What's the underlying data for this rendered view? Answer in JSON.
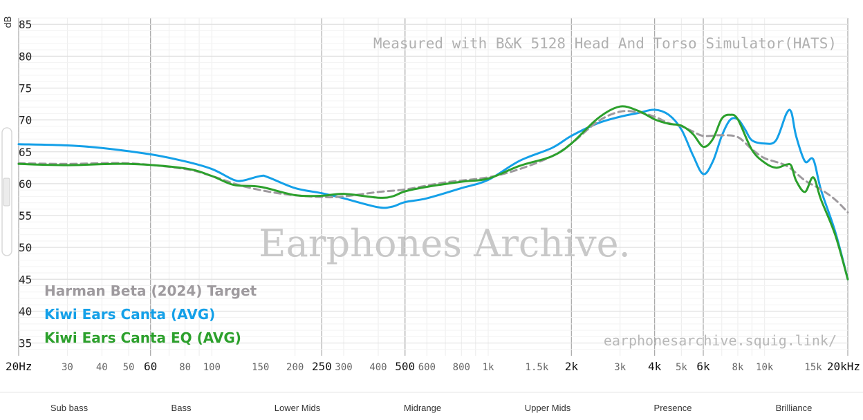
{
  "colors": {
    "target": "#9e9a9e",
    "canta": "#14a0e8",
    "canta_eq": "#2ca02c"
  },
  "chart_data": {
    "type": "line",
    "title": "",
    "xlabel": "",
    "ylabel": "dB",
    "xscale": "log",
    "xlim": [
      20,
      20000
    ],
    "ylim": [
      33,
      86
    ],
    "grid": true,
    "legend_position": "bottom-left",
    "annotation": "Measured with B&K 5128 Head And Torso Simulator(HATS)",
    "watermark": "Earphones Archive.",
    "source": "earphonesarchive.squig.link/",
    "yticks": [
      85,
      80,
      75,
      70,
      65,
      60,
      55,
      50,
      45,
      40,
      35
    ],
    "xticks": [
      {
        "v": 20,
        "label": "20Hz",
        "major": true
      },
      {
        "v": 30,
        "label": "30",
        "major": false
      },
      {
        "v": 40,
        "label": "40",
        "major": false
      },
      {
        "v": 50,
        "label": "50",
        "major": false
      },
      {
        "v": 60,
        "label": "60",
        "major": true
      },
      {
        "v": 80,
        "label": "80",
        "major": false
      },
      {
        "v": 100,
        "label": "100",
        "major": false
      },
      {
        "v": 150,
        "label": "150",
        "major": false
      },
      {
        "v": 200,
        "label": "200",
        "major": false
      },
      {
        "v": 250,
        "label": "250",
        "major": true
      },
      {
        "v": 300,
        "label": "300",
        "major": false
      },
      {
        "v": 400,
        "label": "400",
        "major": false
      },
      {
        "v": 500,
        "label": "500",
        "major": true
      },
      {
        "v": 600,
        "label": "600",
        "major": false
      },
      {
        "v": 800,
        "label": "800",
        "major": false
      },
      {
        "v": 1000,
        "label": "1k",
        "major": false
      },
      {
        "v": 1500,
        "label": "1.5k",
        "major": false
      },
      {
        "v": 2000,
        "label": "2k",
        "major": true
      },
      {
        "v": 3000,
        "label": "3k",
        "major": false
      },
      {
        "v": 4000,
        "label": "4k",
        "major": true
      },
      {
        "v": 5000,
        "label": "5k",
        "major": false
      },
      {
        "v": 6000,
        "label": "6k",
        "major": true
      },
      {
        "v": 8000,
        "label": "8k",
        "major": false
      },
      {
        "v": 10000,
        "label": "10k",
        "major": false
      },
      {
        "v": 15000,
        "label": "15k",
        "major": false
      },
      {
        "v": 20000,
        "label": "20kHz",
        "major": true
      }
    ],
    "bands": [
      {
        "label": "Sub bass",
        "from": 20,
        "to": 60
      },
      {
        "label": "Bass",
        "from": 60,
        "to": 250
      },
      {
        "label": "Lower Mids",
        "from": 250,
        "to": 500
      },
      {
        "label": "Midrange",
        "from": 500,
        "to": 2000
      },
      {
        "label": "Upper Mids",
        "from": 2000,
        "to": 4000
      },
      {
        "label": "Presence",
        "from": 4000,
        "to": 6000
      },
      {
        "label": "Brilliance",
        "from": 6000,
        "to": 20000
      }
    ],
    "series": [
      {
        "name": "Harman Beta (2024) Target",
        "color_key": "target",
        "dashed": true,
        "points": [
          [
            20,
            63.2
          ],
          [
            30,
            63.1
          ],
          [
            50,
            63.2
          ],
          [
            80,
            62.3
          ],
          [
            100,
            61.2
          ],
          [
            130,
            59.6
          ],
          [
            180,
            58.4
          ],
          [
            250,
            57.9
          ],
          [
            300,
            58.0
          ],
          [
            400,
            58.7
          ],
          [
            500,
            59.1
          ],
          [
            700,
            60.2
          ],
          [
            1000,
            61.0
          ],
          [
            1300,
            62.3
          ],
          [
            1700,
            64.3
          ],
          [
            2000,
            66.3
          ],
          [
            2500,
            69.8
          ],
          [
            3000,
            71.3
          ],
          [
            3500,
            71.2
          ],
          [
            4000,
            70.5
          ],
          [
            4500,
            69.5
          ],
          [
            5000,
            69.0
          ],
          [
            5500,
            68.2
          ],
          [
            6000,
            67.5
          ],
          [
            7000,
            67.6
          ],
          [
            8000,
            67.3
          ],
          [
            9000,
            65.4
          ],
          [
            10000,
            64.0
          ],
          [
            12000,
            62.8
          ],
          [
            14000,
            60.5
          ],
          [
            16000,
            59.1
          ],
          [
            18000,
            57.5
          ],
          [
            20000,
            55.5
          ]
        ]
      },
      {
        "name": "Kiwi Ears Canta (AVG)",
        "color_key": "canta",
        "dashed": false,
        "points": [
          [
            20,
            66.2
          ],
          [
            30,
            66.0
          ],
          [
            40,
            65.6
          ],
          [
            60,
            64.6
          ],
          [
            80,
            63.5
          ],
          [
            100,
            62.3
          ],
          [
            120,
            60.6
          ],
          [
            130,
            60.5
          ],
          [
            150,
            61.2
          ],
          [
            160,
            61.0
          ],
          [
            200,
            59.3
          ],
          [
            250,
            58.5
          ],
          [
            300,
            57.7
          ],
          [
            400,
            56.3
          ],
          [
            450,
            56.4
          ],
          [
            500,
            57.1
          ],
          [
            600,
            57.7
          ],
          [
            800,
            59.3
          ],
          [
            1000,
            60.6
          ],
          [
            1300,
            63.6
          ],
          [
            1700,
            65.6
          ],
          [
            2000,
            67.5
          ],
          [
            2500,
            69.5
          ],
          [
            3000,
            70.5
          ],
          [
            3500,
            71.1
          ],
          [
            4000,
            71.6
          ],
          [
            4500,
            70.8
          ],
          [
            5000,
            68.5
          ],
          [
            5500,
            64.5
          ],
          [
            6000,
            61.5
          ],
          [
            6500,
            63.5
          ],
          [
            7000,
            67.5
          ],
          [
            7500,
            70.0
          ],
          [
            8000,
            70.1
          ],
          [
            8500,
            68.5
          ],
          [
            9000,
            66.8
          ],
          [
            10000,
            66.3
          ],
          [
            11000,
            66.8
          ],
          [
            12000,
            71.0
          ],
          [
            12500,
            71.2
          ],
          [
            13000,
            67.5
          ],
          [
            14000,
            63.5
          ],
          [
            15000,
            63.8
          ],
          [
            16000,
            59.0
          ],
          [
            18000,
            52.5
          ],
          [
            20000,
            45.0
          ]
        ]
      },
      {
        "name": "Kiwi Ears Canta EQ (AVG)",
        "color_key": "canta_eq",
        "dashed": false,
        "points": [
          [
            20,
            63.1
          ],
          [
            30,
            62.9
          ],
          [
            50,
            63.1
          ],
          [
            80,
            62.4
          ],
          [
            100,
            61.2
          ],
          [
            120,
            59.8
          ],
          [
            150,
            59.5
          ],
          [
            200,
            58.2
          ],
          [
            250,
            58.1
          ],
          [
            300,
            58.4
          ],
          [
            400,
            57.8
          ],
          [
            450,
            58.0
          ],
          [
            500,
            58.8
          ],
          [
            600,
            59.5
          ],
          [
            800,
            60.3
          ],
          [
            1000,
            60.8
          ],
          [
            1300,
            62.8
          ],
          [
            1700,
            64.3
          ],
          [
            2000,
            66.3
          ],
          [
            2500,
            70.3
          ],
          [
            3000,
            72.1
          ],
          [
            3500,
            71.4
          ],
          [
            4000,
            70.1
          ],
          [
            4500,
            69.4
          ],
          [
            5000,
            69.1
          ],
          [
            5500,
            67.8
          ],
          [
            6000,
            65.8
          ],
          [
            6500,
            67.0
          ],
          [
            7000,
            70.2
          ],
          [
            7500,
            70.8
          ],
          [
            8000,
            70.1
          ],
          [
            9000,
            65.3
          ],
          [
            10000,
            63.3
          ],
          [
            11000,
            62.5
          ],
          [
            12000,
            63.0
          ],
          [
            12500,
            62.8
          ],
          [
            13000,
            60.5
          ],
          [
            14000,
            58.7
          ],
          [
            15000,
            61.0
          ],
          [
            16000,
            57.5
          ],
          [
            18000,
            52.0
          ],
          [
            20000,
            45.0
          ]
        ]
      }
    ]
  }
}
